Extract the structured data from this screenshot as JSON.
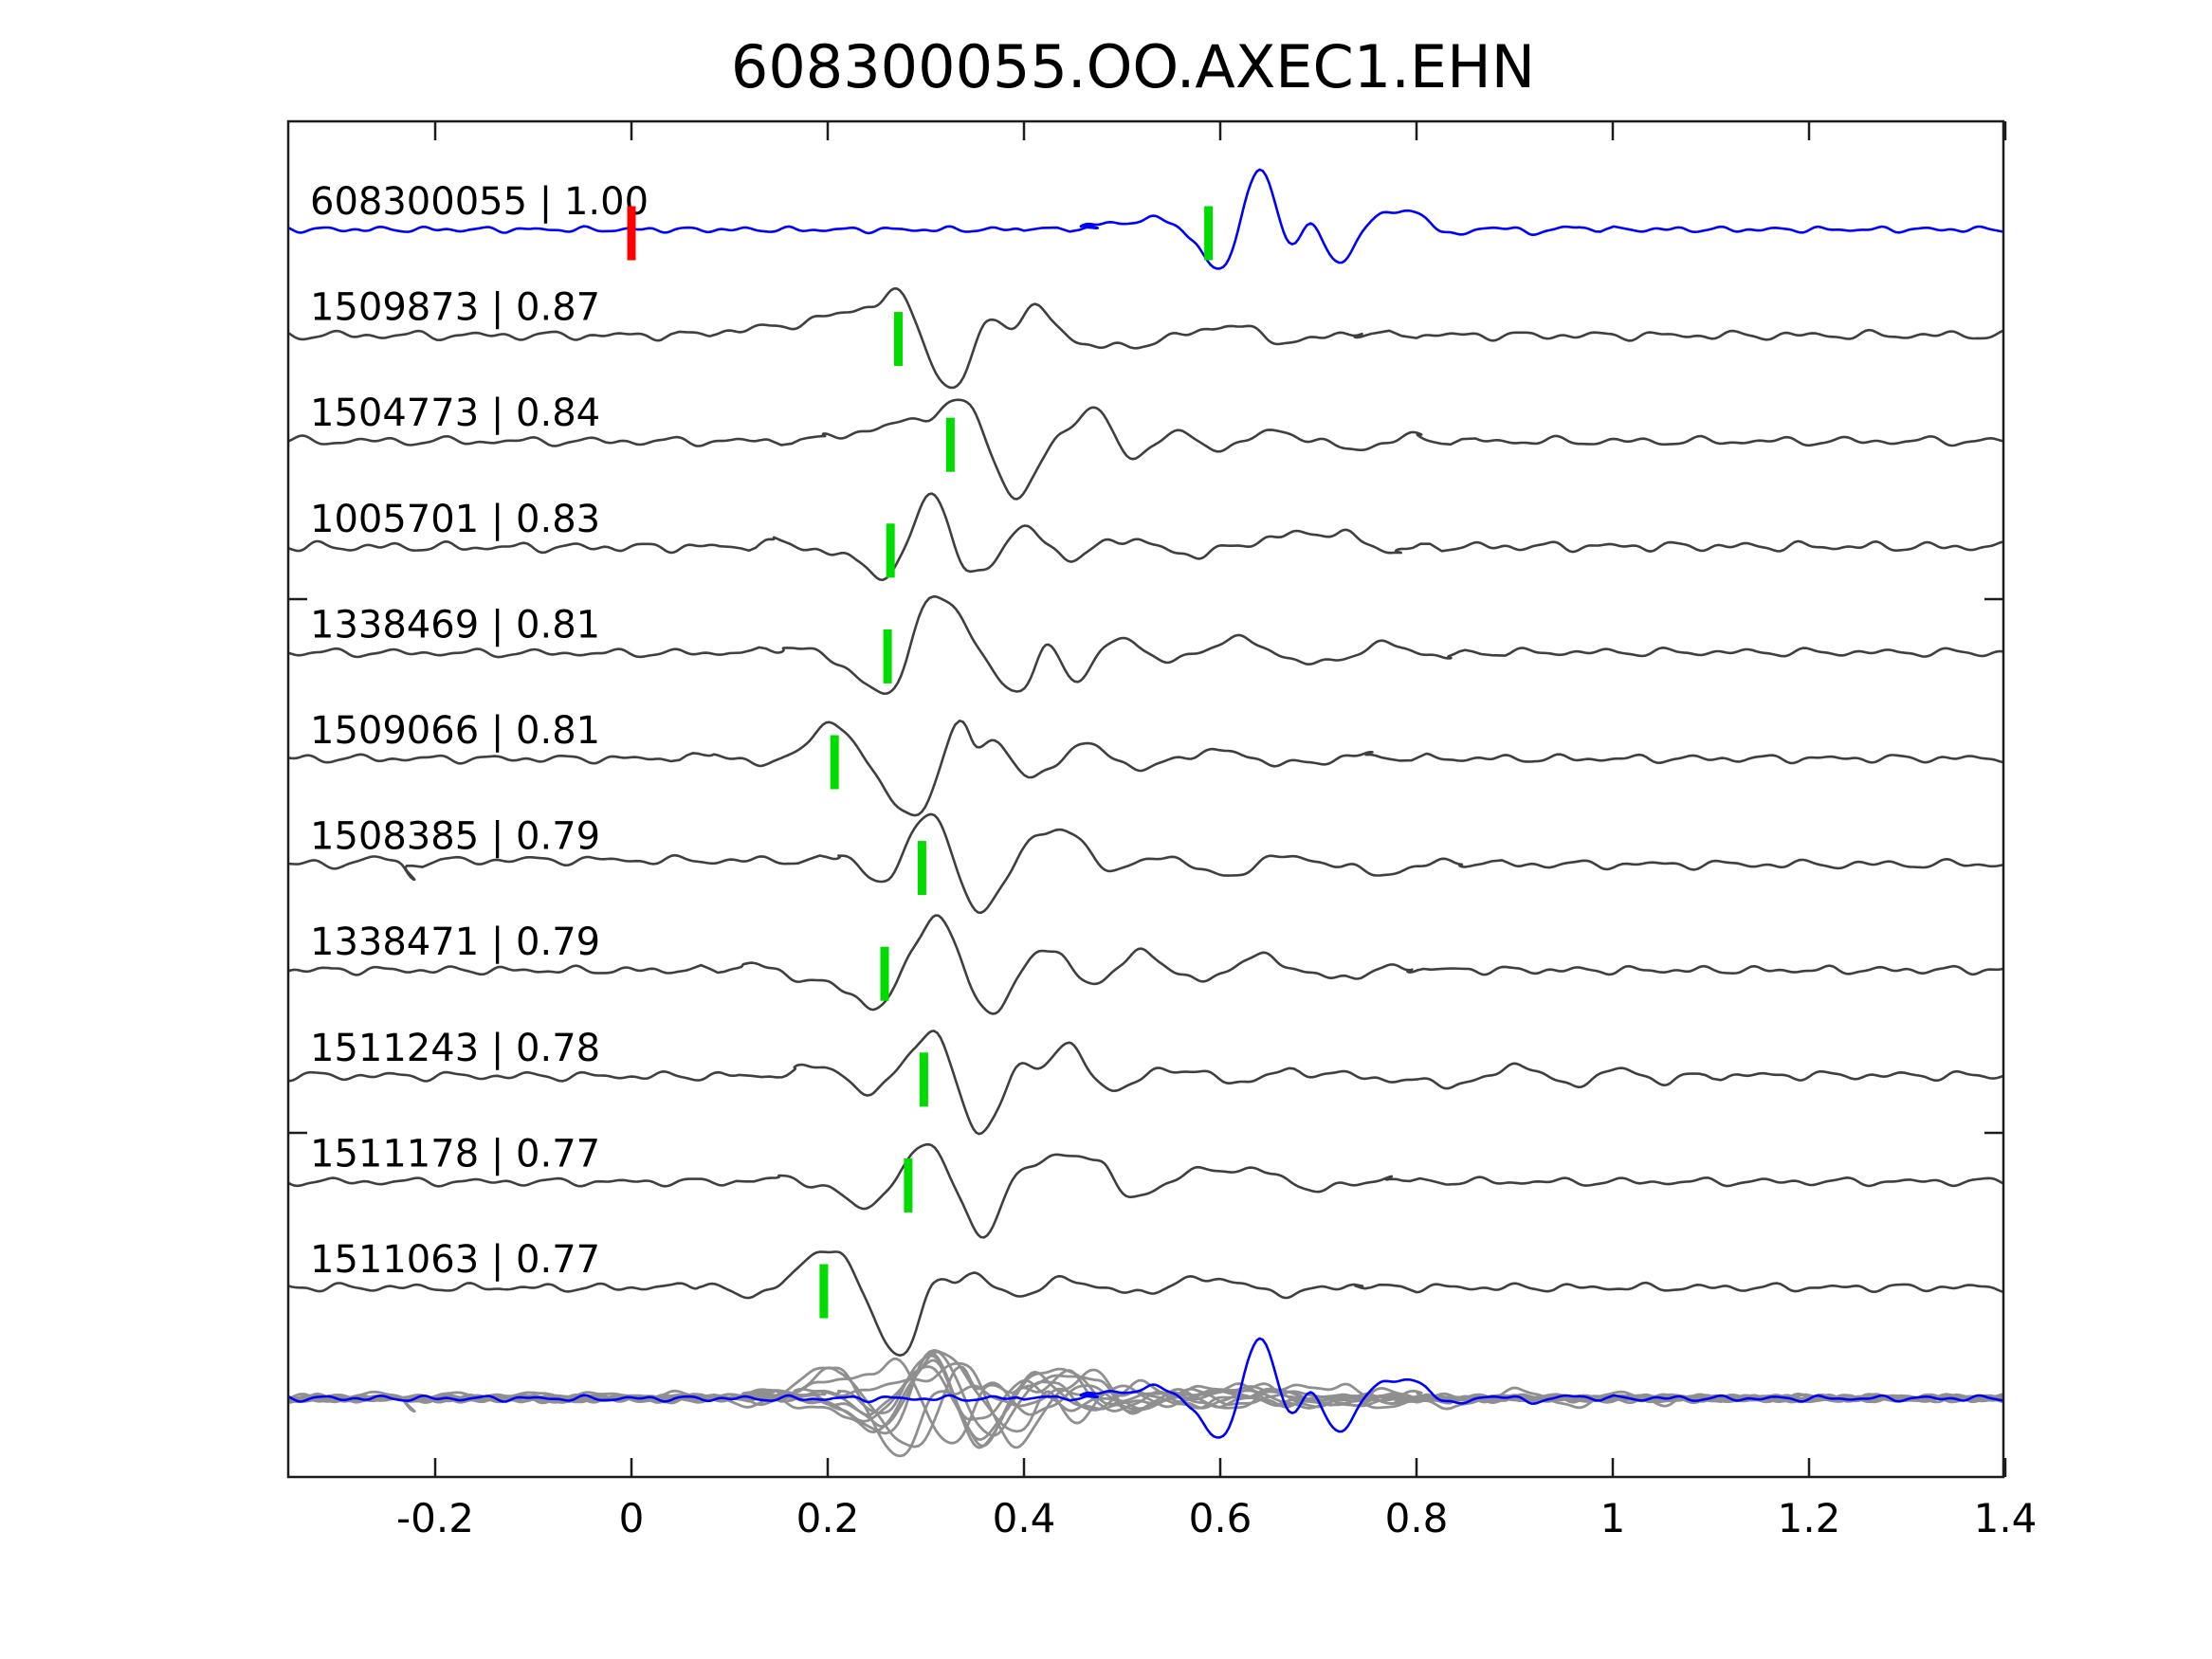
{
  "title": "608300055.OO.AXEC1.EHN",
  "colors": {
    "background": "#ffffff",
    "target_trace": "#0000ff",
    "template_trace": "#3f3f3f",
    "overlay_trace": "#8f8f8f",
    "pick_marker": "#00db00",
    "reference_marker": "#ff0000",
    "axis": "#1c1c1c",
    "text": "#000000"
  },
  "chart_data": {
    "type": "line",
    "title": "608300055.OO.AXEC1.EHN",
    "xlabel": "",
    "ylabel": "",
    "xlim": [
      -0.35,
      1.4
    ],
    "grid": false,
    "legend": "none",
    "x_tick_labels": [
      "-0.2",
      "0",
      "0.2",
      "0.4",
      "0.6",
      "0.8",
      "1",
      "1.2",
      "1.4"
    ],
    "x_tick_values": [
      -0.2,
      0,
      0.2,
      0.4,
      0.6,
      0.8,
      1,
      1.2,
      1.4
    ],
    "amplitude_units": "screen px relative to each trace baseline, positive = up",
    "traces": [
      {
        "id": "608300055",
        "cc": 1.0,
        "label": "608300055 | 1.00",
        "role": "target",
        "ref_time": 0.0,
        "pick_time": 0.588,
        "noise": {
          "amp": 3.5,
          "comps": [
            [
              19.0,
              0.15
            ],
            [
              29.5,
              0.62
            ],
            [
              43.0,
              0.35
            ]
          ]
        },
        "wavelet": [
          [
            0.46,
            4
          ],
          [
            0.5,
            7
          ],
          [
            0.545,
            10
          ],
          [
            0.572,
            -12
          ],
          [
            0.603,
            -40
          ],
          [
            0.64,
            62
          ],
          [
            0.67,
            -14
          ],
          [
            0.692,
            4
          ],
          [
            0.724,
            -34
          ],
          [
            0.758,
            14
          ],
          [
            0.8,
            16
          ],
          [
            0.838,
            -6
          ],
          [
            0.875,
            3
          ],
          [
            0.915,
            -3
          ],
          [
            0.96,
            2
          ]
        ]
      },
      {
        "id": "1509873",
        "cc": 0.87,
        "label": "1509873 | 0.87",
        "role": "template",
        "pick_time": 0.272,
        "noise": {
          "amp": 5.5,
          "comps": [
            [
              14.1,
              0.42
            ],
            [
              22.3,
              0.11
            ],
            [
              35.3,
              0.78
            ]
          ]
        },
        "wavelet": [
          [
            0.09,
            4
          ],
          [
            0.155,
            10
          ],
          [
            0.21,
            22
          ],
          [
            0.245,
            32
          ],
          [
            0.277,
            39
          ],
          [
            0.325,
            -58
          ],
          [
            0.362,
            14
          ],
          [
            0.388,
            10
          ],
          [
            0.415,
            27
          ],
          [
            0.462,
            -10
          ],
          [
            0.528,
            -8
          ],
          [
            0.607,
            10
          ],
          [
            0.67,
            -7
          ],
          [
            0.74,
            4
          ]
        ]
      },
      {
        "id": "1504773",
        "cc": 0.84,
        "label": "1504773 | 0.84",
        "role": "template",
        "pick_time": 0.325,
        "noise": {
          "amp": 5.5,
          "comps": [
            [
              13.3,
              0.74
            ],
            [
              21.1,
              0.33
            ],
            [
              33.7,
              0.52
            ]
          ]
        },
        "wavelet": [
          [
            0.2,
            5
          ],
          [
            0.255,
            14
          ],
          [
            0.3,
            26
          ],
          [
            0.345,
            36
          ],
          [
            0.39,
            -58
          ],
          [
            0.437,
            8
          ],
          [
            0.475,
            32
          ],
          [
            0.508,
            -18
          ],
          [
            0.548,
            8
          ],
          [
            0.6,
            -7
          ],
          [
            0.66,
            10
          ],
          [
            0.73,
            -8
          ],
          [
            0.8,
            5
          ]
        ]
      },
      {
        "id": "1005701",
        "cc": 0.83,
        "label": "1005701 | 0.83",
        "role": "template",
        "pick_time": 0.264,
        "noise": {
          "amp": 6,
          "comps": [
            [
              15.2,
              0.08
            ],
            [
              23.9,
              0.85
            ],
            [
              37.1,
              0.21
            ]
          ]
        },
        "wavelet": [
          [
            0.15,
            6
          ],
          [
            0.195,
            -6
          ],
          [
            0.232,
            -14
          ],
          [
            0.266,
            -30
          ],
          [
            0.306,
            58
          ],
          [
            0.345,
            -30
          ],
          [
            0.398,
            18
          ],
          [
            0.448,
            -12
          ],
          [
            0.5,
            9
          ],
          [
            0.57,
            -8
          ],
          [
            0.655,
            10
          ],
          [
            0.72,
            14
          ],
          [
            0.78,
            -6
          ]
        ]
      },
      {
        "id": "1338469",
        "cc": 0.81,
        "label": "1338469 | 0.81",
        "role": "template",
        "pick_time": 0.261,
        "noise": {
          "amp": 5,
          "comps": [
            [
              13.9,
              0.55
            ],
            [
              20.7,
              0.48
            ],
            [
              34.9,
              0.64
            ]
          ]
        },
        "wavelet": [
          [
            0.16,
            8
          ],
          [
            0.215,
            -14
          ],
          [
            0.268,
            -40
          ],
          [
            0.308,
            62
          ],
          [
            0.388,
            -40
          ],
          [
            0.425,
            6
          ],
          [
            0.455,
            -28
          ],
          [
            0.498,
            16
          ],
          [
            0.548,
            -10
          ],
          [
            0.615,
            14
          ],
          [
            0.695,
            -12
          ],
          [
            0.765,
            8
          ],
          [
            0.83,
            -5
          ]
        ]
      },
      {
        "id": "1509066",
        "cc": 0.81,
        "label": "1509066 | 0.81",
        "role": "template",
        "pick_time": 0.207,
        "noise": {
          "amp": 5,
          "comps": [
            [
              14.7,
              0.29
            ],
            [
              22.9,
              0.71
            ],
            [
              36.1,
              0.09
            ]
          ]
        },
        "wavelet": [
          [
            0.09,
            5
          ],
          [
            0.135,
            -8
          ],
          [
            0.165,
            8
          ],
          [
            0.215,
            31
          ],
          [
            0.285,
            -62
          ],
          [
            0.33,
            32
          ],
          [
            0.352,
            14
          ],
          [
            0.374,
            18
          ],
          [
            0.408,
            -22
          ],
          [
            0.458,
            14
          ],
          [
            0.52,
            -10
          ],
          [
            0.59,
            8
          ],
          [
            0.67,
            -6
          ],
          [
            0.75,
            4
          ]
        ]
      },
      {
        "id": "1508385",
        "cc": 0.79,
        "label": "1508385 | 0.79",
        "role": "template",
        "pick_time": 0.296,
        "noise": {
          "amp": 5.5,
          "comps": [
            [
              13.1,
              0.63
            ],
            [
              21.7,
              0.24
            ],
            [
              33.1,
              0.88
            ]
          ]
        },
        "wavelet": [
          [
            -0.245,
            5
          ],
          [
            -0.222,
            -14
          ],
          [
            -0.195,
            3
          ],
          [
            0.17,
            4
          ],
          [
            0.215,
            9
          ],
          [
            0.262,
            -16
          ],
          [
            0.306,
            56
          ],
          [
            0.353,
            -52
          ],
          [
            0.398,
            18
          ],
          [
            0.424,
            30
          ],
          [
            0.45,
            33
          ],
          [
            0.492,
            -8
          ],
          [
            0.54,
            10
          ],
          [
            0.6,
            -12
          ],
          [
            0.67,
            8
          ],
          [
            0.76,
            -9
          ],
          [
            0.84,
            4
          ]
        ]
      },
      {
        "id": "1338471",
        "cc": 0.79,
        "label": "1338471 | 0.79",
        "role": "template",
        "pick_time": 0.258,
        "noise": {
          "amp": 5,
          "comps": [
            [
              15.7,
              0.18
            ],
            [
              24.3,
              0.57
            ],
            [
              38.3,
              0.44
            ]
          ]
        },
        "wavelet": [
          [
            0.12,
            6
          ],
          [
            0.175,
            -10
          ],
          [
            0.218,
            -20
          ],
          [
            0.256,
            -38
          ],
          [
            0.31,
            55
          ],
          [
            0.365,
            -45
          ],
          [
            0.418,
            24
          ],
          [
            0.468,
            -14
          ],
          [
            0.52,
            18
          ],
          [
            0.578,
            -12
          ],
          [
            0.638,
            14
          ],
          [
            0.71,
            -8
          ],
          [
            0.79,
            4
          ]
        ]
      },
      {
        "id": "1511243",
        "cc": 0.78,
        "label": "1511243 | 0.78",
        "role": "template",
        "pick_time": 0.298,
        "noise": {
          "amp": 5.5,
          "comps": [
            [
              14.3,
              0.81
            ],
            [
              22.1,
              0.39
            ],
            [
              35.7,
              0.17
            ]
          ]
        },
        "wavelet": [
          [
            0.17,
            6
          ],
          [
            0.205,
            10
          ],
          [
            0.244,
            -20
          ],
          [
            0.308,
            42
          ],
          [
            0.354,
            -60
          ],
          [
            0.392,
            6
          ],
          [
            0.418,
            12
          ],
          [
            0.446,
            30
          ],
          [
            0.49,
            -14
          ],
          [
            0.548,
            8
          ],
          [
            0.615,
            -6
          ],
          [
            0.68,
            4
          ],
          [
            0.845,
            -8
          ],
          [
            0.905,
            13
          ],
          [
            0.95,
            -10
          ],
          [
            1.005,
            6
          ],
          [
            1.05,
            -5
          ]
        ]
      },
      {
        "id": "1511178",
        "cc": 0.77,
        "label": "1511178 | 0.77",
        "role": "template",
        "pick_time": 0.282,
        "noise": {
          "amp": 5,
          "comps": [
            [
              13.7,
              0.36
            ],
            [
              21.3,
              0.92
            ],
            [
              34.3,
              0.58
            ]
          ]
        },
        "wavelet": [
          [
            0.155,
            5
          ],
          [
            0.2,
            -8
          ],
          [
            0.245,
            -24
          ],
          [
            0.306,
            38
          ],
          [
            0.356,
            -60
          ],
          [
            0.392,
            8
          ],
          [
            0.443,
            26
          ],
          [
            0.476,
            24
          ],
          [
            0.508,
            -17
          ],
          [
            0.565,
            8
          ],
          [
            0.635,
            12
          ],
          [
            0.7,
            -8
          ],
          [
            0.77,
            4
          ]
        ]
      },
      {
        "id": "1511063",
        "cc": 0.77,
        "label": "1511063 | 0.77",
        "role": "template",
        "pick_time": 0.196,
        "noise": {
          "amp": 5,
          "comps": [
            [
              15.1,
              0.69
            ],
            [
              23.3,
              0.14
            ],
            [
              36.7,
              0.31
            ]
          ]
        },
        "wavelet": [
          [
            0.075,
            5
          ],
          [
            0.115,
            -10
          ],
          [
            0.16,
            10
          ],
          [
            0.21,
            39
          ],
          [
            0.27,
            -70
          ],
          [
            0.308,
            2
          ],
          [
            0.33,
            8
          ],
          [
            0.348,
            14
          ],
          [
            0.39,
            -8
          ],
          [
            0.445,
            8
          ],
          [
            0.51,
            -6
          ],
          [
            0.59,
            10
          ],
          [
            0.66,
            -6
          ],
          [
            0.74,
            3
          ]
        ]
      }
    ],
    "overlay": {
      "description": "all templates and target superimposed on bottom row",
      "template_scale": 0.85,
      "template_noise_scale": 0.8,
      "target_scale": 1.0,
      "target_noise_scale": 1.0
    }
  }
}
